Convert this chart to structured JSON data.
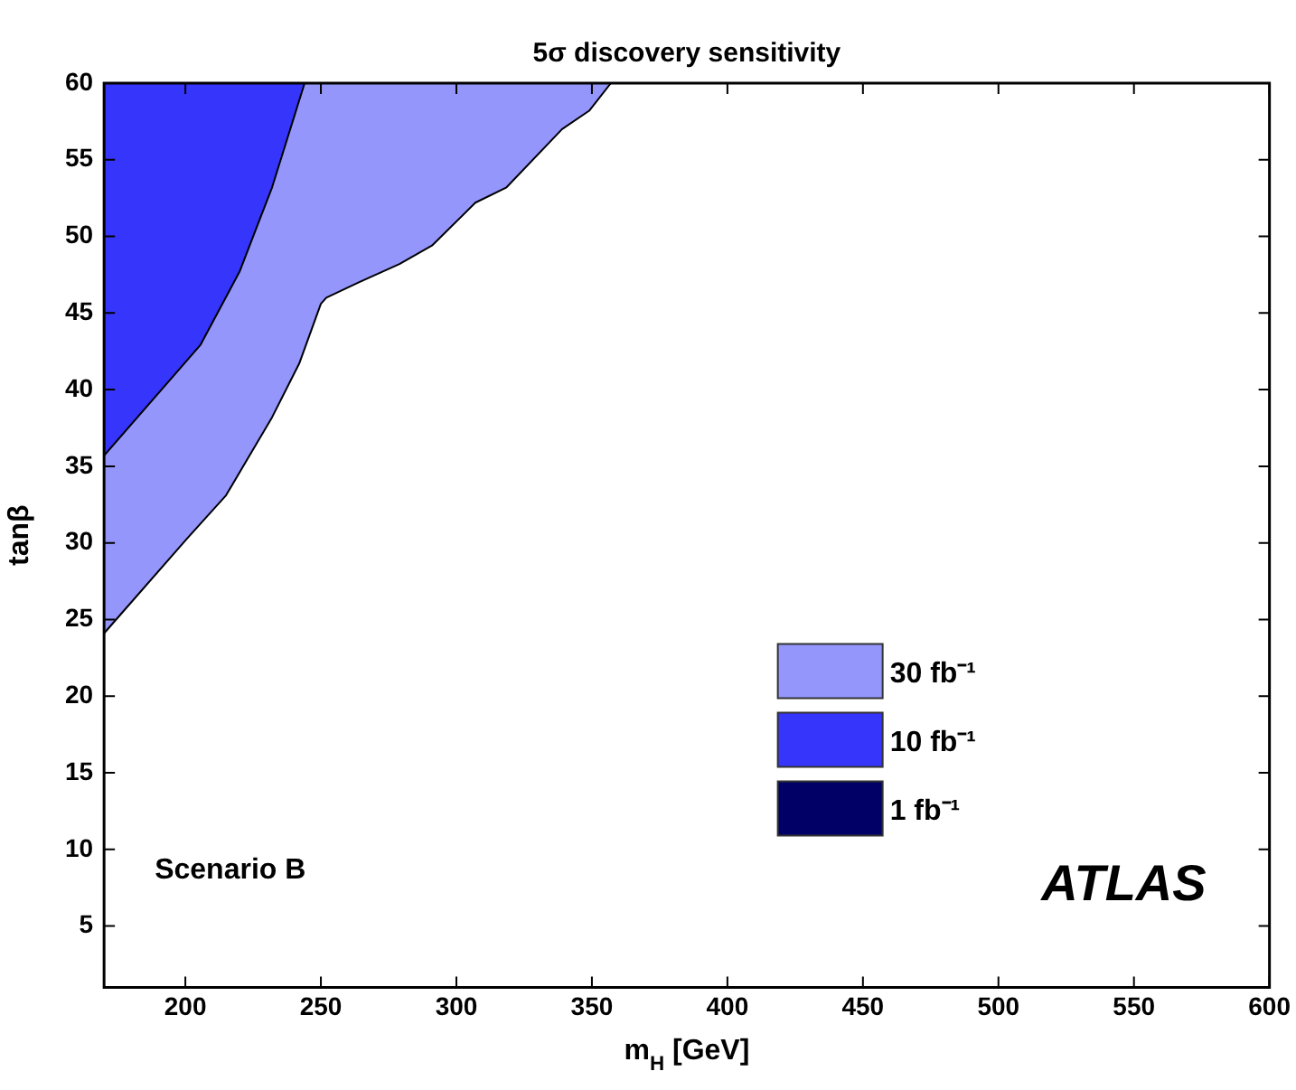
{
  "chart_data": {
    "type": "area",
    "title": "5σ discovery sensitivity",
    "xlabel": "m$_{H}$ [GeV]",
    "ylabel": "tanβ",
    "xlim": [
      170,
      600
    ],
    "xticks": [
      200,
      250,
      300,
      350,
      400,
      450,
      500,
      550,
      600
    ],
    "ylim": [
      1,
      60
    ],
    "yticks": [
      5,
      10,
      15,
      20,
      25,
      30,
      35,
      40,
      45,
      50,
      55,
      60
    ],
    "grid": false,
    "legend": "bottom right",
    "marker": "none",
    "annotations": [
      "Scenario B",
      "ATLAS"
    ],
    "series": [
      {
        "name": "30 fb⁻¹",
        "color": "#9496fc",
        "x": [
          170,
          200.7,
          215,
          232,
          242,
          250,
          252,
          264,
          279,
          291,
          307,
          318.5,
          339,
          349,
          357,
          170
        ],
        "values": [
          24.1,
          30.3,
          33.1,
          38.2,
          41.7,
          45.6,
          46,
          47,
          48.2,
          49.4,
          52.2,
          53.2,
          57,
          58.2,
          60,
          60
        ]
      },
      {
        "name": "10 fb⁻¹",
        "color": "#3535fb",
        "x": [
          170,
          205.5,
          220,
          232,
          244,
          170
        ],
        "values": [
          35.7,
          42.9,
          47.7,
          53.2,
          60,
          60
        ]
      },
      {
        "name": "1 fb⁻¹",
        "color": "#000066"
      }
    ]
  }
}
